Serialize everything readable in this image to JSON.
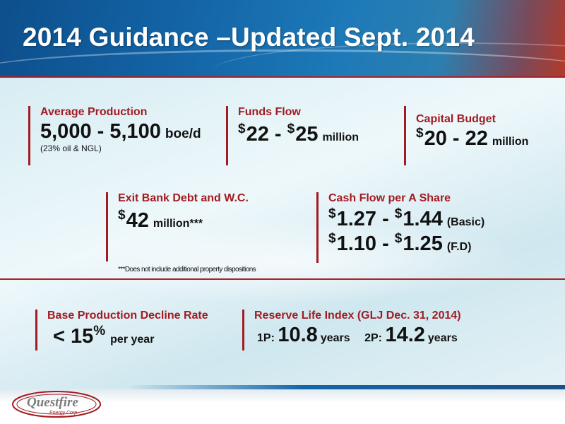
{
  "title": "2014 Guidance –Updated Sept. 2014",
  "cards": {
    "avg_production": {
      "label": "Average Production",
      "value": "5,000 - 5,100",
      "unit": "boe/d",
      "note": "(23% oil & NGL)"
    },
    "funds_flow": {
      "label": "Funds Flow",
      "cur1": "$",
      "v1": "22 - ",
      "cur2": "$",
      "v2": "25",
      "unit": "million"
    },
    "capital_budget": {
      "label": "Capital Budget",
      "cur": "$",
      "value": "20 - 22",
      "unit": "million"
    },
    "exit_bank_debt": {
      "label": "Exit Bank Debt and W.C.",
      "cur": "$",
      "value": "42",
      "unit": "million***",
      "footnote": "***Does not include additional property dispositions"
    },
    "cash_flow_per_share": {
      "label": "Cash Flow per A Share",
      "basic": {
        "cur1": "$",
        "v1": "1.27 - ",
        "cur2": "$",
        "v2": "1.44",
        "unit": "(Basic)"
      },
      "fd": {
        "cur1": "$",
        "v1": "1.10 - ",
        "cur2": "$",
        "v2": "1.25",
        "unit": "(F.D)"
      }
    },
    "decline_rate": {
      "label": "Base Production Decline Rate",
      "value": "< 15",
      "pct": "%",
      "unit": "per year"
    },
    "reserve_life": {
      "label": "Reserve Life Index (GLJ Dec. 31, 2014)",
      "p1_label": "1P:",
      "p1_value": "10.8",
      "p1_unit": "years",
      "p2_label": "2P:",
      "p2_value": "14.2",
      "p2_unit": "years"
    }
  },
  "logo": {
    "name": "Questfire",
    "sub": "Energy Corp."
  },
  "colors": {
    "accent": "#a21b22",
    "header": "#1466a8"
  }
}
